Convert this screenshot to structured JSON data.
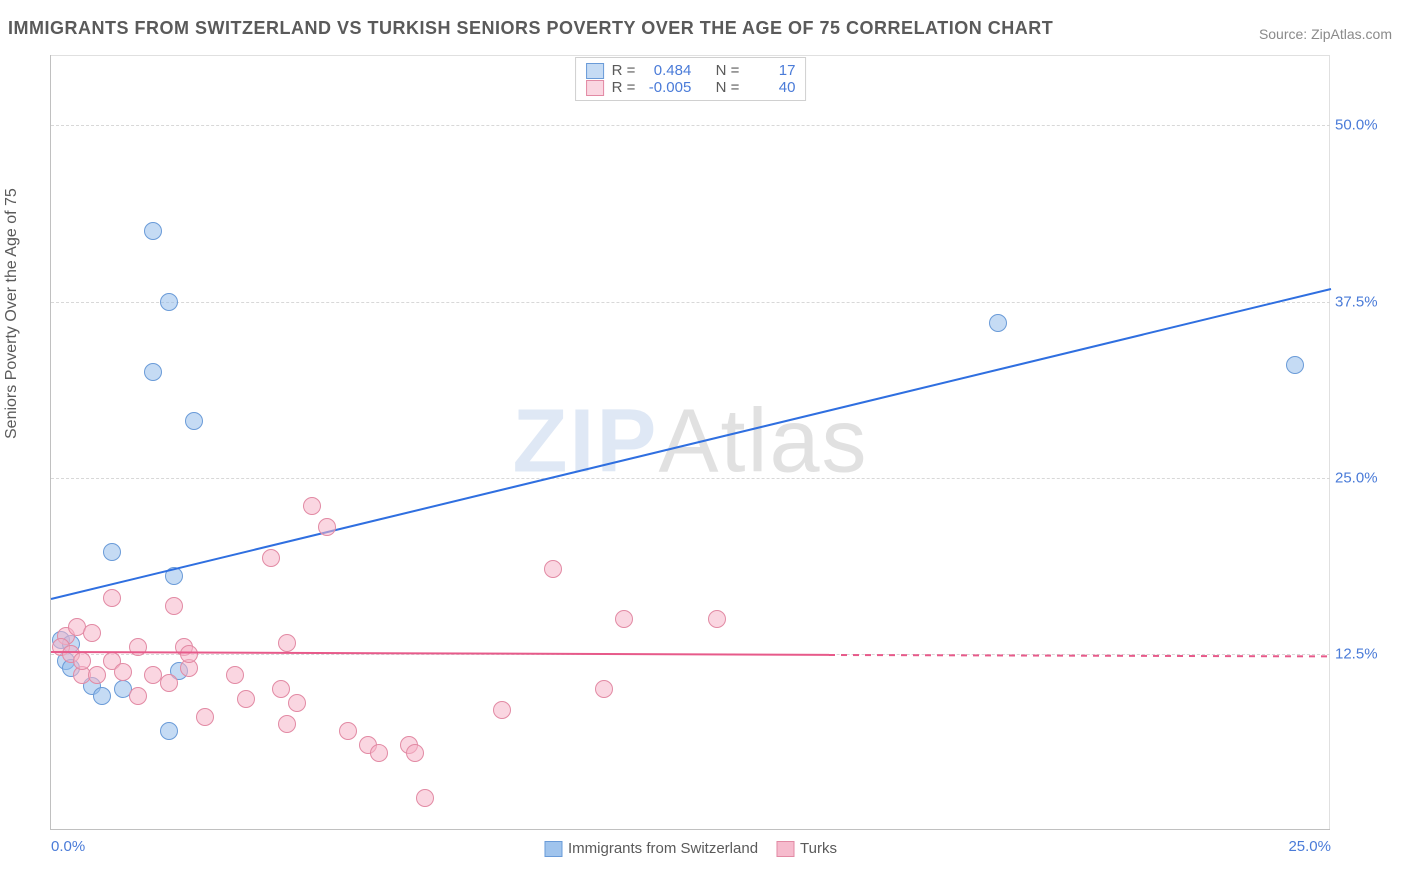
{
  "title": "IMMIGRANTS FROM SWITZERLAND VS TURKISH SENIORS POVERTY OVER THE AGE OF 75 CORRELATION CHART",
  "source_label": "Source: ",
  "source_name": "ZipAtlas.com",
  "watermark_bold": "ZIP",
  "watermark_rest": "Atlas",
  "chart": {
    "type": "scatter",
    "ylabel": "Seniors Poverty Over the Age of 75",
    "xlim": [
      0,
      25
    ],
    "ylim": [
      0,
      55
    ],
    "xticks": [
      0.0,
      25.0
    ],
    "xtick_labels": [
      "0.0%",
      "25.0%"
    ],
    "yticks": [
      12.5,
      25.0,
      37.5,
      50.0
    ],
    "ytick_labels": [
      "12.5%",
      "25.0%",
      "37.5%",
      "50.0%"
    ],
    "background_color": "#ffffff",
    "grid_color": "#d8d8d8",
    "axis_color": "#c0c0c0",
    "tick_label_color": "#4a7bd8",
    "label_color": "#5a5a5a",
    "title_color": "#5a5a5a",
    "title_fontsize": 18,
    "label_fontsize": 16,
    "tick_fontsize": 15,
    "marker_size": 18,
    "series": [
      {
        "name": "Immigrants from Switzerland",
        "fill": "rgba(150,190,235,0.55)",
        "stroke": "#6a9bd8",
        "trend_color": "#2f6fe0",
        "r_label": "R = ",
        "r_value": "0.484",
        "n_label": "N = ",
        "n_value": "17",
        "trend": {
          "x1": 0,
          "y1": 16.5,
          "x2": 25,
          "y2": 38.5
        },
        "points": [
          [
            2.0,
            42.5
          ],
          [
            2.3,
            37.5
          ],
          [
            2.0,
            32.5
          ],
          [
            2.8,
            29.0
          ],
          [
            1.2,
            19.7
          ],
          [
            2.4,
            18.0
          ],
          [
            18.5,
            36.0
          ],
          [
            24.3,
            33.0
          ],
          [
            0.2,
            13.5
          ],
          [
            0.3,
            12.0
          ],
          [
            0.4,
            11.5
          ],
          [
            0.8,
            10.2
          ],
          [
            1.0,
            9.5
          ],
          [
            2.3,
            7.0
          ],
          [
            2.5,
            11.3
          ],
          [
            0.4,
            13.2
          ],
          [
            1.4,
            10.0
          ]
        ]
      },
      {
        "name": "Turks",
        "fill": "rgba(245,180,200,0.55)",
        "stroke": "#e28aa4",
        "trend_color": "#e75a8a",
        "r_label": "R = ",
        "r_value": "-0.005",
        "n_label": "N = ",
        "n_value": "40",
        "trend": {
          "x1": 0,
          "y1": 12.7,
          "x2": 15.2,
          "y2": 12.5
        },
        "trend_dash": {
          "x1": 15.2,
          "y1": 12.5,
          "x2": 25,
          "y2": 12.4
        },
        "points": [
          [
            5.1,
            23.0
          ],
          [
            5.4,
            21.5
          ],
          [
            4.3,
            19.3
          ],
          [
            1.2,
            16.5
          ],
          [
            2.4,
            15.9
          ],
          [
            9.8,
            18.5
          ],
          [
            11.2,
            15.0
          ],
          [
            13.0,
            15.0
          ],
          [
            0.3,
            13.8
          ],
          [
            0.5,
            14.4
          ],
          [
            0.8,
            14.0
          ],
          [
            1.7,
            13.0
          ],
          [
            2.6,
            13.0
          ],
          [
            2.7,
            11.5
          ],
          [
            2.7,
            12.5
          ],
          [
            4.6,
            13.3
          ],
          [
            0.2,
            13.0
          ],
          [
            0.4,
            12.5
          ],
          [
            0.6,
            11.0
          ],
          [
            0.9,
            11.0
          ],
          [
            1.2,
            12.0
          ],
          [
            1.4,
            11.2
          ],
          [
            2.0,
            11.0
          ],
          [
            3.6,
            11.0
          ],
          [
            3.8,
            9.3
          ],
          [
            4.5,
            10.0
          ],
          [
            4.8,
            9.0
          ],
          [
            10.8,
            10.0
          ],
          [
            8.8,
            8.5
          ],
          [
            3.0,
            8.0
          ],
          [
            4.6,
            7.5
          ],
          [
            5.8,
            7.0
          ],
          [
            6.2,
            6.0
          ],
          [
            6.4,
            5.5
          ],
          [
            7.0,
            6.0
          ],
          [
            7.1,
            5.5
          ],
          [
            7.3,
            2.3
          ],
          [
            1.7,
            9.5
          ],
          [
            0.6,
            12.0
          ],
          [
            2.3,
            10.4
          ]
        ]
      }
    ],
    "legend_bottom": [
      {
        "label": "Immigrants from Switzerland",
        "fill": "rgba(150,190,235,0.9)",
        "stroke": "#6a9bd8"
      },
      {
        "label": "Turks",
        "fill": "rgba(245,180,200,0.9)",
        "stroke": "#e28aa4"
      }
    ]
  }
}
